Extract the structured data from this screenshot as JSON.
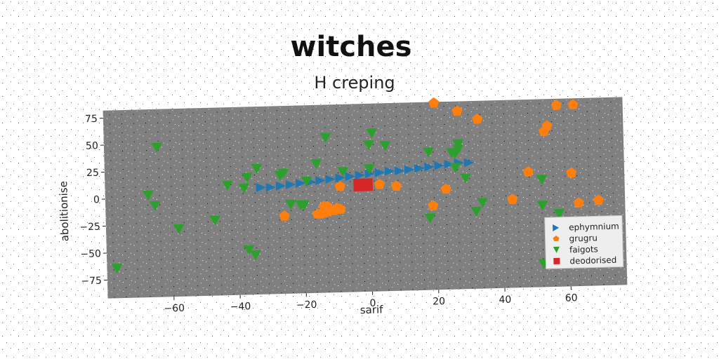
{
  "chart_data": {
    "type": "scatter",
    "title": "witches",
    "subtitle": "H creping",
    "xlabel": "sarif",
    "ylabel": "abolitionise",
    "xlim": [
      -80,
      77
    ],
    "ylim": [
      -92,
      82
    ],
    "xticks": [
      -60,
      -40,
      -20,
      0,
      20,
      40,
      60
    ],
    "yticks": [
      75,
      50,
      25,
      0,
      -25,
      -50,
      -75
    ],
    "grid": false,
    "legend_position": "lower-right",
    "colors": {
      "background": "#808080",
      "ephymnium": "#1f77b4",
      "grugru": "#ff7f0e",
      "faigots": "#2ca02c",
      "deodorised": "#d62728"
    },
    "series": [
      {
        "name": "ephymnium",
        "marker": "right-triangle",
        "points": [
          [
            -33,
            7
          ],
          [
            -30,
            7
          ],
          [
            -27,
            8
          ],
          [
            -24,
            9
          ],
          [
            -21,
            10
          ],
          [
            -18,
            11
          ],
          [
            -15,
            12
          ],
          [
            -12,
            13
          ],
          [
            -9,
            14
          ],
          [
            -6,
            15
          ],
          [
            -3,
            16
          ],
          [
            0,
            17
          ],
          [
            3,
            18
          ],
          [
            6,
            19
          ],
          [
            9,
            19
          ],
          [
            12,
            20
          ],
          [
            15,
            21
          ],
          [
            18,
            22
          ],
          [
            21,
            23
          ],
          [
            24,
            24
          ],
          [
            27,
            25
          ],
          [
            30,
            25
          ]
        ]
      },
      {
        "name": "grugru",
        "marker": "pentagon",
        "points": [
          [
            20,
            81
          ],
          [
            27,
            73
          ],
          [
            33,
            65
          ],
          [
            57,
            76
          ],
          [
            62,
            76
          ],
          [
            53,
            52
          ],
          [
            54,
            57
          ],
          [
            48,
            15
          ],
          [
            61,
            13
          ],
          [
            -9,
            6
          ],
          [
            -2,
            7
          ],
          [
            3,
            7
          ],
          [
            8,
            5
          ],
          [
            23,
            1
          ],
          [
            -26,
            -20
          ],
          [
            -14,
            -12
          ],
          [
            -13,
            -12
          ],
          [
            19,
            -14
          ],
          [
            43,
            -10
          ],
          [
            63,
            -15
          ],
          [
            69,
            -13
          ],
          [
            -12,
            -16
          ],
          [
            -9,
            -15
          ],
          [
            -10,
            -14
          ],
          [
            -11,
            -16
          ],
          [
            -12,
            -15
          ],
          [
            -13,
            -17
          ],
          [
            -14,
            -18
          ],
          [
            -15,
            -19
          ],
          [
            -16,
            -19
          ]
        ]
      },
      {
        "name": "faigots",
        "marker": "down-triangle",
        "points": [
          [
            -64,
            47
          ],
          [
            -13,
            52
          ],
          [
            1,
            55
          ],
          [
            0,
            44
          ],
          [
            5,
            43
          ],
          [
            18,
            36
          ],
          [
            25,
            35
          ],
          [
            26,
            34
          ],
          [
            27,
            43
          ],
          [
            27,
            38
          ],
          [
            -16,
            28
          ],
          [
            -34,
            25
          ],
          [
            -37,
            17
          ],
          [
            -27,
            18
          ],
          [
            -26,
            20
          ],
          [
            -8,
            20
          ],
          [
            0,
            22
          ],
          [
            26,
            21
          ],
          [
            29,
            11
          ],
          [
            -19,
            12
          ],
          [
            -43,
            10
          ],
          [
            -38,
            7
          ],
          [
            -67,
            3
          ],
          [
            -65,
            -7
          ],
          [
            -24,
            -9
          ],
          [
            -21,
            -10
          ],
          [
            -47,
            -22
          ],
          [
            -58,
            -29
          ],
          [
            18,
            -25
          ],
          [
            32,
            -20
          ],
          [
            34,
            -12
          ],
          [
            52,
            8
          ],
          [
            52,
            -16
          ],
          [
            57,
            -24
          ],
          [
            -37,
            -50
          ],
          [
            -35,
            -55
          ],
          [
            -77,
            -64
          ],
          [
            52,
            -70
          ],
          [
            -20,
            -10
          ],
          [
            -20,
            -10
          ]
        ]
      },
      {
        "name": "deodorised",
        "marker": "square",
        "points": [
          [
            -3,
            7
          ],
          [
            -1,
            7
          ]
        ]
      }
    ]
  }
}
